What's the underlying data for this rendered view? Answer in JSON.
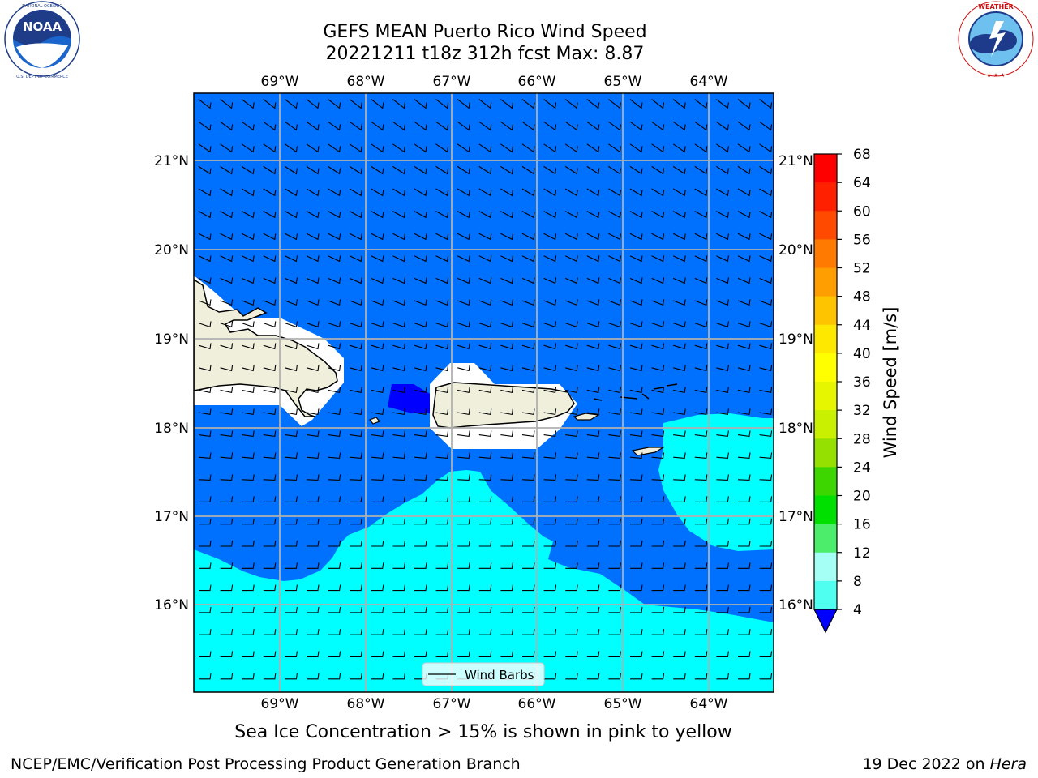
{
  "header": {
    "title_line1": "GEFS MEAN Puerto Rico Wind Speed",
    "title_line2": "20221211 t18z 312h fcst   Max: 8.87",
    "left_logo": "NOAA",
    "left_logo_ring_text": "NATIONAL OCEANIC AND ATMOSPHERIC ADMINISTRATION · U.S. DEPARTMENT OF COMMERCE",
    "right_logo_ring_text": "NATIONAL WEATHER SERVICE"
  },
  "map": {
    "lon_labels": [
      "69°W",
      "68°W",
      "67°W",
      "66°W",
      "65°W",
      "64°W"
    ],
    "lat_labels": [
      "21°N",
      "20°N",
      "19°N",
      "18°N",
      "17°N",
      "16°N"
    ],
    "legend_label": "Wind Barbs",
    "islands": [
      "Hispaniola",
      "Puerto Rico",
      "Virgin Islands",
      "St. Croix",
      "Mona",
      "Vieques"
    ]
  },
  "colorbar": {
    "label": "Wind Speed [m/s]",
    "ticks": [
      "68",
      "64",
      "60",
      "56",
      "52",
      "48",
      "44",
      "40",
      "36",
      "32",
      "28",
      "24",
      "20",
      "16",
      "12",
      "8",
      "4"
    ],
    "colors": [
      "#ff0000",
      "#ff2000",
      "#ff4a00",
      "#ff7a00",
      "#ff9e00",
      "#ffc400",
      "#ffe800",
      "#ffff00",
      "#e6f500",
      "#c8f000",
      "#96e000",
      "#3dd600",
      "#00e000",
      "#4ced6a",
      "#a6fff4",
      "#4ffff0",
      "#00ffff",
      "#0070ff"
    ],
    "extend_color": "#0000ff"
  },
  "footer": {
    "caption": "Sea Ice Concentration > 15% is shown in pink to yellow",
    "credit": "NCEP/EMC/Verification Post Processing Product Generation Branch",
    "date": "19 Dec 2022 on ",
    "host": "Hera"
  },
  "colors": {
    "ocean_low": "#0070ff",
    "ocean_high": "#00ffff",
    "dark_patch": "#0000ff",
    "land": "#efefdc",
    "grid": "#b0b0b0"
  }
}
